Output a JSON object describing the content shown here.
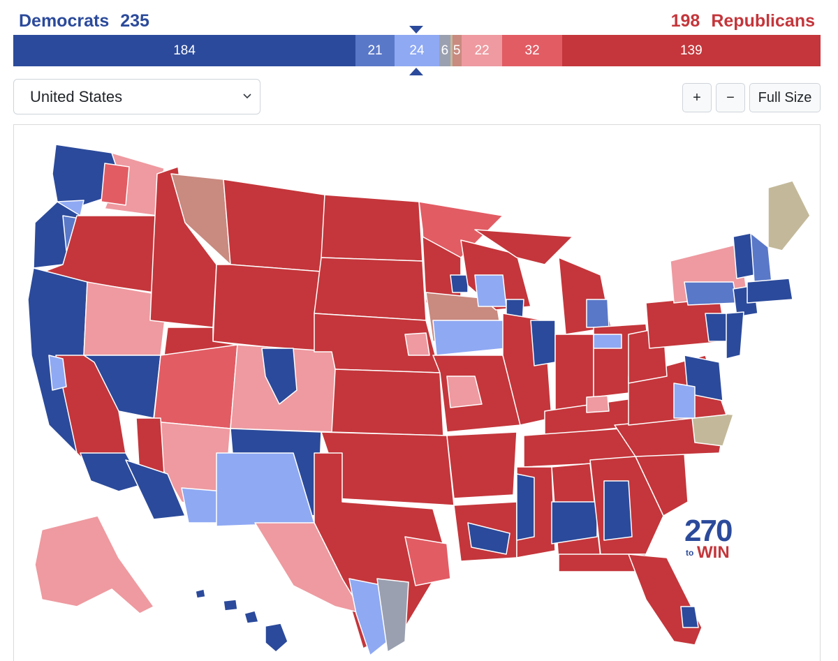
{
  "totals": {
    "dem_label": "Democrats",
    "dem_count": "235",
    "rep_count": "198",
    "rep_label": "Republicans"
  },
  "bar_segments": [
    {
      "label": "184",
      "value": 184,
      "color": "#2b4a9b"
    },
    {
      "label": "21",
      "value": 21,
      "color": "#5a78c8"
    },
    {
      "label": "24",
      "value": 24,
      "color": "#8fa9f3"
    },
    {
      "label": "6",
      "value": 6,
      "color": "#9aa0b0"
    },
    {
      "label": "",
      "value": 1,
      "color": "#c3b99a"
    },
    {
      "label": "5",
      "value": 5,
      "color": "#c98a80"
    },
    {
      "label": "22",
      "value": 22,
      "color": "#ee9aa0"
    },
    {
      "label": "32",
      "value": 32,
      "color": "#e25c64"
    },
    {
      "label": "139",
      "value": 139,
      "color": "#c4363b"
    }
  ],
  "region_select": {
    "value": "United States"
  },
  "controls": {
    "zoom_in": "+",
    "zoom_out": "−",
    "full_size": "Full Size"
  },
  "logo": {
    "number": "270",
    "to": "to",
    "win": "WIN"
  },
  "colors": {
    "safe_dem": "#2b4a9b",
    "likely_dem": "#5a78c8",
    "lean_dem": "#8fa9f3",
    "tilt_dem": "#9aa0b0",
    "tossup": "#c3b99a",
    "tilt_rep": "#c98a80",
    "lean_rep": "#ee9aa0",
    "likely_rep": "#e25c64",
    "safe_rep": "#c4363b"
  }
}
